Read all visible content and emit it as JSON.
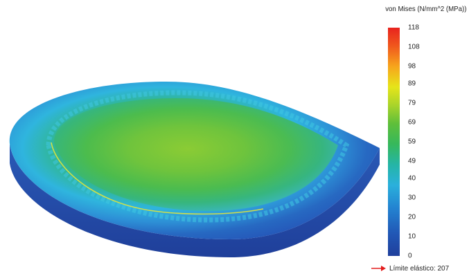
{
  "legend": {
    "title": "von Mises (N/mm^2 (MPa))",
    "ticks": [
      "118",
      "108",
      "98",
      "89",
      "79",
      "69",
      "59",
      "49",
      "40",
      "30",
      "20",
      "10",
      "0"
    ],
    "tick_values": [
      118,
      108,
      98,
      89,
      79,
      69,
      59,
      49,
      40,
      30,
      20,
      10,
      0
    ],
    "min": 0,
    "max": 118,
    "yield_label": "Límite elástico: 207",
    "yield_marker_color": "#e31b1b"
  },
  "colors": {
    "high": "#e8231e",
    "mid_high": "#e6e51a",
    "mid": "#5fbf3a",
    "mid_low": "#2ab0dc",
    "low": "#1f3f9c"
  }
}
